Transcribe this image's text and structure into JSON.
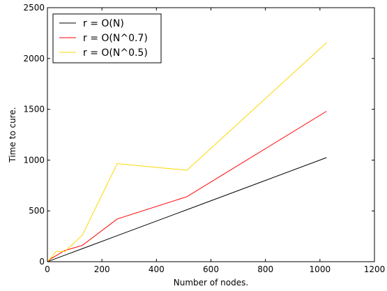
{
  "chart_data": {
    "type": "line",
    "xlabel": "Number of nodes.",
    "ylabel": "Time to cure.",
    "xlim": [
      0,
      1200
    ],
    "ylim": [
      0,
      2500
    ],
    "xticks": [
      0,
      200,
      400,
      600,
      800,
      1000,
      1200
    ],
    "yticks": [
      0,
      500,
      1000,
      1500,
      2000,
      2500
    ],
    "grid": false,
    "legend_position": "top-left",
    "series": [
      {
        "name": "r = O(N)",
        "color": "#000000",
        "x": [
          2,
          4,
          8,
          16,
          32,
          64,
          128,
          256,
          512,
          1024
        ],
        "y": [
          2,
          4,
          8,
          16,
          32,
          64,
          128,
          256,
          512,
          1024
        ]
      },
      {
        "name": "r = O(N^0.7)",
        "color": "#ff0000",
        "x": [
          2,
          4,
          8,
          16,
          32,
          64,
          128,
          256,
          512,
          1024
        ],
        "y": [
          5,
          10,
          20,
          35,
          60,
          110,
          160,
          420,
          640,
          1480
        ]
      },
      {
        "name": "r = O(N^0.5)",
        "color": "#ffd700",
        "x": [
          2,
          4,
          8,
          16,
          32,
          64,
          128,
          256,
          512,
          1024
        ],
        "y": [
          5,
          12,
          25,
          45,
          100,
          100,
          260,
          965,
          900,
          2155
        ]
      }
    ]
  }
}
